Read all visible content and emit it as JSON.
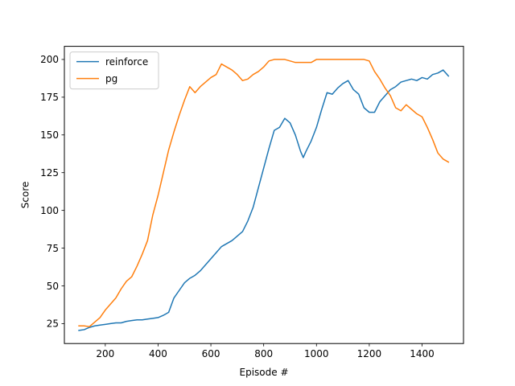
{
  "chart_data": {
    "type": "line",
    "title": "",
    "xlabel": "Episode #",
    "ylabel": "Score",
    "xlim": [
      45,
      1557
    ],
    "ylim": [
      11.8,
      208.7
    ],
    "xticks": [
      200,
      400,
      600,
      800,
      1000,
      1200,
      1400
    ],
    "yticks": [
      25,
      50,
      75,
      100,
      125,
      150,
      175,
      200
    ],
    "grid": false,
    "legend_position": "upper-left",
    "series": [
      {
        "name": "reinforce",
        "color": "#1f77b4",
        "x": [
          100,
          120,
          140,
          160,
          180,
          200,
          220,
          240,
          260,
          280,
          300,
          320,
          340,
          360,
          380,
          400,
          420,
          440,
          460,
          480,
          500,
          520,
          540,
          560,
          580,
          600,
          620,
          640,
          660,
          680,
          700,
          720,
          740,
          760,
          780,
          800,
          820,
          840,
          860,
          880,
          900,
          920,
          940,
          950,
          960,
          980,
          1000,
          1020,
          1040,
          1060,
          1080,
          1100,
          1120,
          1140,
          1160,
          1180,
          1200,
          1220,
          1240,
          1260,
          1280,
          1300,
          1320,
          1340,
          1360,
          1380,
          1400,
          1420,
          1440,
          1460,
          1480,
          1500
        ],
        "values": [
          20.5,
          21,
          22.5,
          23.5,
          24,
          24.5,
          25,
          25.5,
          25.5,
          26.5,
          27,
          27.5,
          27.5,
          28,
          28.5,
          29,
          30.5,
          32.5,
          42,
          47,
          52,
          55,
          57,
          60,
          64,
          68,
          72,
          76,
          78,
          80,
          83,
          86,
          93,
          102,
          115,
          128,
          141,
          153,
          155,
          161,
          158,
          150,
          139,
          135,
          139,
          146,
          155,
          167,
          178,
          177,
          181,
          184,
          186,
          180,
          177,
          168,
          165,
          165,
          172,
          176,
          180,
          182,
          185,
          186,
          187,
          186,
          188,
          187,
          190,
          191,
          193,
          189
        ]
      },
      {
        "name": "pg",
        "color": "#ff7f0e",
        "x": [
          100,
          120,
          140,
          160,
          180,
          200,
          220,
          240,
          260,
          280,
          300,
          320,
          340,
          360,
          380,
          400,
          420,
          440,
          460,
          480,
          500,
          520,
          540,
          560,
          580,
          600,
          620,
          640,
          660,
          680,
          700,
          720,
          740,
          760,
          780,
          800,
          820,
          840,
          860,
          880,
          900,
          920,
          940,
          960,
          980,
          1000,
          1020,
          1040,
          1060,
          1080,
          1100,
          1120,
          1140,
          1160,
          1180,
          1200,
          1220,
          1240,
          1260,
          1280,
          1300,
          1320,
          1340,
          1360,
          1380,
          1400,
          1420,
          1440,
          1460,
          1480,
          1500
        ],
        "values": [
          23.5,
          23.5,
          23,
          26,
          29,
          34,
          38,
          42,
          48,
          53,
          56,
          63,
          71,
          80,
          97,
          110,
          125,
          140,
          152,
          163,
          173,
          182,
          178,
          182,
          185,
          188,
          190,
          197,
          195,
          193,
          190,
          186,
          187,
          190,
          192,
          195,
          199,
          200,
          200,
          200,
          199,
          198,
          198,
          198,
          198,
          200,
          200,
          200,
          200,
          200,
          200,
          200,
          200,
          200,
          200,
          199,
          192,
          187,
          181,
          176,
          168,
          166,
          170,
          167,
          164,
          162,
          155,
          147,
          138,
          134,
          132
        ]
      }
    ]
  }
}
